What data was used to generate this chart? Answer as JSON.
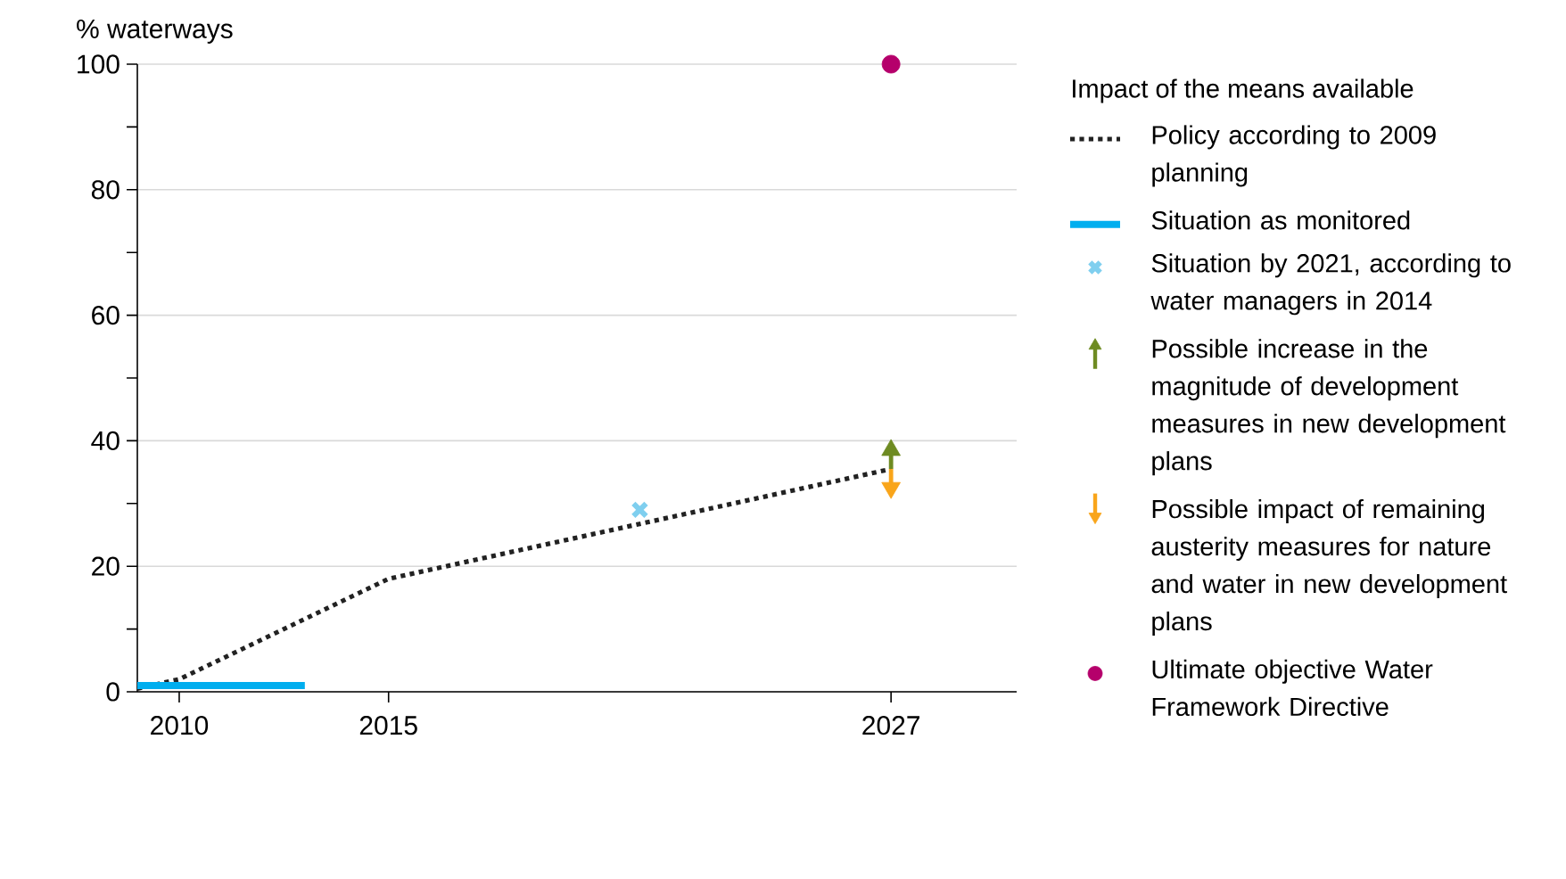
{
  "chart_data": {
    "type": "line",
    "ylabel": "% waterways",
    "legend_title": "Impact of the means available",
    "legend": "right",
    "grid": "y",
    "xlim": [
      2009,
      2030
    ],
    "xticks": [
      2010,
      2015,
      2027
    ],
    "ylim": [
      0,
      100
    ],
    "yticks": [
      0,
      20,
      40,
      60,
      80,
      100
    ],
    "series": [
      {
        "name": "Policy according to 2009 planning",
        "line_style": "dotted",
        "marker": "none",
        "color": "#222222",
        "x": [
          2009,
          2010,
          2015,
          2027
        ],
        "values": [
          0.5,
          2,
          18,
          35.5
        ]
      },
      {
        "name": "Situation as monitored",
        "line_style": "solid",
        "marker": "none",
        "color": "#00aeef",
        "x": [
          2009,
          2013
        ],
        "values": [
          1,
          1
        ]
      },
      {
        "name": "Situation by 2021, according to water managers in 2014",
        "type": "scatter",
        "marker": "cross",
        "color": "#7fcfef",
        "x": [
          2021
        ],
        "values": [
          29
        ]
      },
      {
        "name": "Possible increase in the magnitude of development measures in new development plans",
        "type": "scatter",
        "marker": "triangle",
        "color": "#6e8b22",
        "x": [
          2027
        ],
        "values": [
          38.5
        ],
        "errors": [
          [
            35.5,
            38.5
          ]
        ]
      },
      {
        "name": "Possible impact of remaining austerity measures for nature and water in new development plans",
        "type": "scatter",
        "marker": "triangle",
        "color": "#f9a51a",
        "x": [
          2027
        ],
        "values": [
          32.5
        ],
        "errors": [
          [
            32.5,
            35.5
          ]
        ]
      },
      {
        "name": "Ultimate objective Water Framework Directive",
        "type": "scatter",
        "marker": "circle",
        "color": "#b5006b",
        "x": [
          2027
        ],
        "values": [
          100
        ]
      }
    ]
  }
}
